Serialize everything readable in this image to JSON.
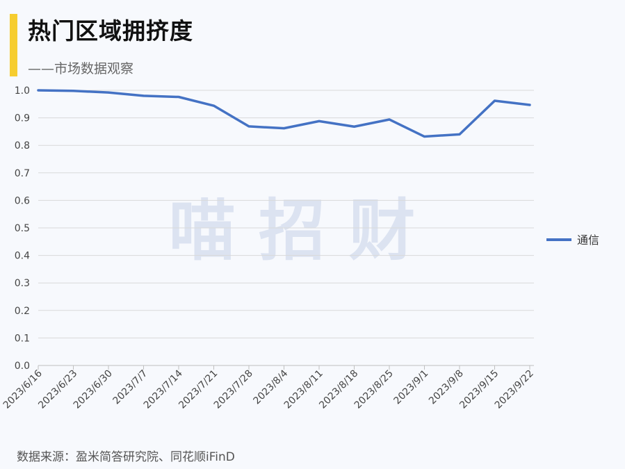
{
  "header": {
    "title": "热门区域拥挤度",
    "subtitle": "——市场数据观察"
  },
  "footer": {
    "source": "数据来源：盈米简答研究院、同花顺iFinD"
  },
  "watermark": "喵 招 财",
  "colors": {
    "accent": "#f6cd2f",
    "series": "#4472c4",
    "grid": "#d9d9d9",
    "watermark": "#d8e0ef"
  },
  "chart_data": {
    "type": "line",
    "categories": [
      "2023/6/16",
      "2023/6/23",
      "2023/6/30",
      "2023/7/7",
      "2023/7/14",
      "2023/7/21",
      "2023/7/28",
      "2023/8/4",
      "2023/8/11",
      "2023/8/18",
      "2023/8/25",
      "2023/9/1",
      "2023/9/8",
      "2023/9/15",
      "2023/9/22"
    ],
    "series": [
      {
        "name": "通信",
        "values": [
          1.0,
          0.998,
          0.992,
          0.98,
          0.976,
          0.944,
          0.869,
          0.862,
          0.888,
          0.868,
          0.894,
          0.832,
          0.84,
          0.962,
          0.947
        ]
      }
    ],
    "ylim": [
      0.0,
      1.0
    ],
    "yticks": [
      "0.0",
      "0.1",
      "0.2",
      "0.3",
      "0.4",
      "0.5",
      "0.6",
      "0.7",
      "0.8",
      "0.9",
      "1.0"
    ],
    "grid": true,
    "legend_position": "right"
  }
}
